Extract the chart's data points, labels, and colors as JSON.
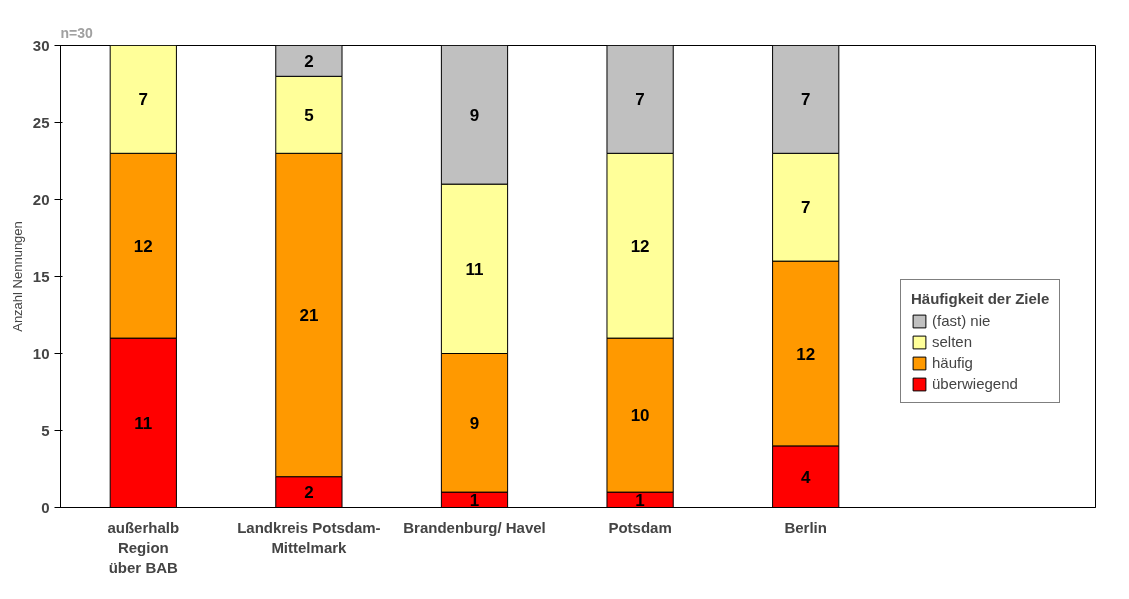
{
  "chart_data": {
    "type": "bar",
    "stacked": true,
    "ylabel": "Anzahl Nennungen",
    "legend_title": "Häufigkeit der Ziele",
    "annotations": [
      "n=30"
    ],
    "categories": [
      "außerhalb\nRegion\nüber BAB",
      "Landkreis Potsdam-\nMittelmark",
      "Brandenburg/ Havel",
      "Potsdam",
      "Berlin"
    ],
    "series": [
      {
        "name": "überwiegend",
        "color": "#ff0000",
        "values": [
          11,
          2,
          1,
          1,
          4
        ]
      },
      {
        "name": "häufig",
        "color": "#ff9900",
        "values": [
          12,
          21,
          9,
          10,
          12
        ]
      },
      {
        "name": "selten",
        "color": "#ffff99",
        "values": [
          7,
          5,
          11,
          12,
          7
        ]
      },
      {
        "name": "(fast) nie",
        "color": "#c0c0c0",
        "values": [
          null,
          2,
          9,
          7,
          7
        ]
      }
    ],
    "ylim": [
      0,
      30
    ],
    "yticks": [
      0,
      5,
      10,
      15,
      20,
      25,
      30
    ],
    "grid": false,
    "legend": "right",
    "data_labels": true
  }
}
